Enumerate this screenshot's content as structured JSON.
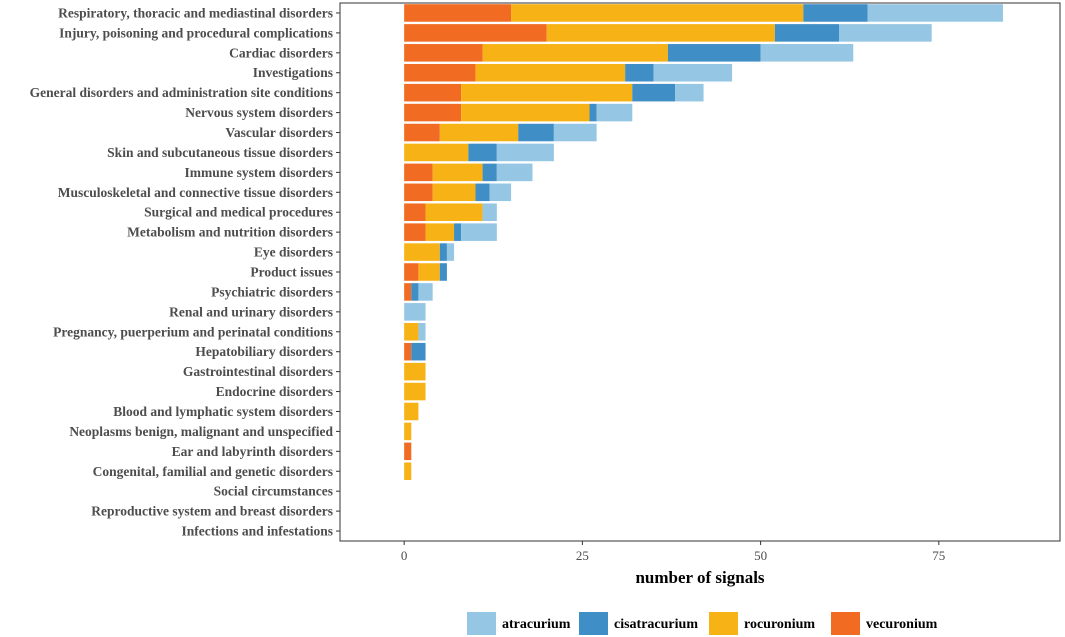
{
  "chart_data": {
    "type": "bar",
    "orientation": "horizontal",
    "stacked": true,
    "xlabel": "number of signals",
    "ylabel": "",
    "xlim": [
      -9,
      92
    ],
    "xticks": [
      0,
      25,
      50,
      75
    ],
    "grid": false,
    "legend_position": "bottom",
    "categories": [
      "Respiratory, thoracic and mediastinal disorders",
      "Injury, poisoning and procedural complications",
      "Cardiac disorders",
      "Investigations",
      "General disorders and administration site conditions",
      "Nervous system disorders",
      "Vascular disorders",
      "Skin and subcutaneous tissue disorders",
      "Immune system disorders",
      "Musculoskeletal and connective tissue disorders",
      "Surgical and medical procedures",
      "Metabolism and nutrition disorders",
      "Eye disorders",
      "Product issues",
      "Psychiatric disorders",
      "Renal and urinary disorders",
      "Pregnancy, puerperium and perinatal conditions",
      "Hepatobiliary disorders",
      "Gastrointestinal disorders",
      "Endocrine disorders",
      "Blood and lymphatic system disorders",
      "Neoplasms benign, malignant and unspecified",
      "Ear and labyrinth disorders",
      "Congenital, familial and genetic disorders",
      "Social circumstances",
      "Reproductive system and breast disorders",
      "Infections and infestations"
    ],
    "series": [
      {
        "name": "vecuronium",
        "color": "#f26b22",
        "values": [
          15,
          20,
          11,
          10,
          8,
          8,
          5,
          0,
          4,
          4,
          3,
          3,
          0,
          2,
          1,
          0,
          0,
          1,
          0,
          0,
          0,
          0,
          1,
          0,
          0,
          0,
          0
        ]
      },
      {
        "name": "rocuronium",
        "color": "#f7b215",
        "values": [
          41,
          32,
          26,
          21,
          24,
          18,
          11,
          9,
          7,
          6,
          8,
          4,
          5,
          3,
          0,
          0,
          2,
          0,
          3,
          3,
          2,
          1,
          0,
          1,
          0,
          0,
          0
        ]
      },
      {
        "name": "cisatracurium",
        "color": "#3f8ec6",
        "values": [
          9,
          9,
          13,
          4,
          6,
          1,
          5,
          4,
          2,
          2,
          0,
          1,
          1,
          1,
          1,
          0,
          0,
          2,
          0,
          0,
          0,
          0,
          0,
          0,
          0,
          0,
          0
        ]
      },
      {
        "name": "atracurium",
        "color": "#95c6e3",
        "values": [
          19,
          13,
          13,
          11,
          4,
          5,
          6,
          8,
          5,
          3,
          2,
          5,
          1,
          0,
          2,
          3,
          1,
          0,
          0,
          0,
          0,
          0,
          0,
          0,
          0,
          0,
          0
        ]
      }
    ],
    "legend_order": [
      "atracurium",
      "cisatracurium",
      "rocuronium",
      "vecuronium"
    ]
  }
}
